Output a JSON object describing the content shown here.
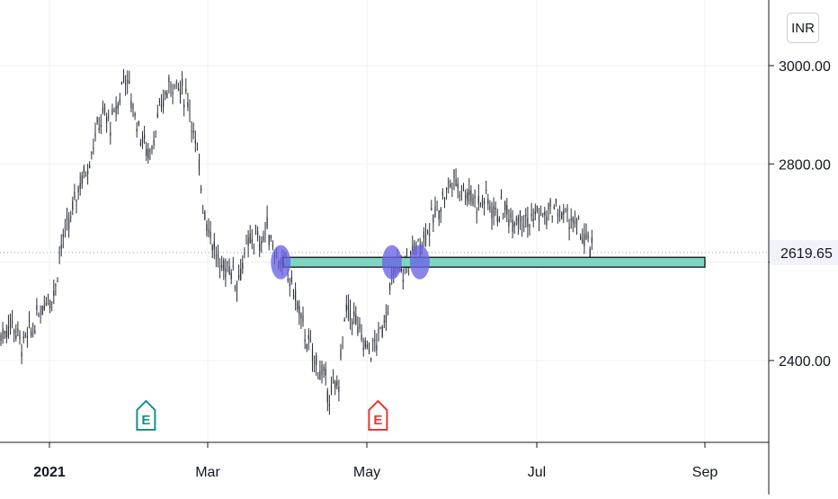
{
  "chart_data": {
    "type": "candlestick",
    "currency": "INR",
    "x_ticks": [
      "2021",
      "Mar",
      "May",
      "Jul",
      "Sep"
    ],
    "y_ticks": [
      2400,
      2600,
      2800,
      3000
    ],
    "y_tick_labels": [
      "2400.00",
      "",
      "2800.00",
      "3000.00"
    ],
    "ylim": [
      2200,
      3100
    ],
    "last_price": 2619.65,
    "last_price_label": "2619.65",
    "support_zone": {
      "low": 2590,
      "high": 2610,
      "start": "2021-03-30",
      "end": "2021-09-01"
    },
    "touch_points": [
      {
        "date": "2021-03-29",
        "price": 2600
      },
      {
        "date": "2021-05-10",
        "price": 2600
      },
      {
        "date": "2021-05-20",
        "price": 2600
      }
    ],
    "events": [
      {
        "label": "E",
        "date": "2021-02-06",
        "kind": "earnings",
        "color": "#1b8f8f"
      },
      {
        "label": "E",
        "date": "2021-05-05",
        "kind": "earnings",
        "color": "#e53935"
      }
    ],
    "series": [
      {
        "values": [
          [
            "2020-12-10",
            2470
          ],
          [
            "2020-12-14",
            2450
          ],
          [
            "2020-12-18",
            2480
          ],
          [
            "2020-12-22",
            2430
          ],
          [
            "2020-12-26",
            2470
          ],
          [
            "2020-12-30",
            2520
          ],
          [
            "2021-01-03",
            2540
          ],
          [
            "2021-01-05",
            2630
          ],
          [
            "2021-01-07",
            2660
          ],
          [
            "2021-01-09",
            2690
          ],
          [
            "2021-01-12",
            2760
          ],
          [
            "2021-01-15",
            2790
          ],
          [
            "2021-01-18",
            2860
          ],
          [
            "2021-01-21",
            2900
          ],
          [
            "2021-01-24",
            2880
          ],
          [
            "2021-01-27",
            2930
          ],
          [
            "2021-01-29",
            2990
          ],
          [
            "2021-02-01",
            2920
          ],
          [
            "2021-02-04",
            2860
          ],
          [
            "2021-02-07",
            2820
          ],
          [
            "2021-02-10",
            2880
          ],
          [
            "2021-02-13",
            2940
          ],
          [
            "2021-02-16",
            2970
          ],
          [
            "2021-02-19",
            2950
          ],
          [
            "2021-02-22",
            2930
          ],
          [
            "2021-02-24",
            2850
          ],
          [
            "2021-02-26",
            2780
          ],
          [
            "2021-02-28",
            2700
          ],
          [
            "2021-03-03",
            2640
          ],
          [
            "2021-03-06",
            2580
          ],
          [
            "2021-03-09",
            2600
          ],
          [
            "2021-03-12",
            2560
          ],
          [
            "2021-03-15",
            2610
          ],
          [
            "2021-03-18",
            2650
          ],
          [
            "2021-03-21",
            2640
          ],
          [
            "2021-03-24",
            2670
          ],
          [
            "2021-03-27",
            2620
          ],
          [
            "2021-03-30",
            2590
          ],
          [
            "2021-04-02",
            2560
          ],
          [
            "2021-04-05",
            2500
          ],
          [
            "2021-04-08",
            2440
          ],
          [
            "2021-04-11",
            2400
          ],
          [
            "2021-04-14",
            2370
          ],
          [
            "2021-04-17",
            2330
          ],
          [
            "2021-04-20",
            2350
          ],
          [
            "2021-04-23",
            2500
          ],
          [
            "2021-04-26",
            2490
          ],
          [
            "2021-04-29",
            2440
          ],
          [
            "2021-05-02",
            2420
          ],
          [
            "2021-05-05",
            2440
          ],
          [
            "2021-05-08",
            2500
          ],
          [
            "2021-05-11",
            2590
          ],
          [
            "2021-05-14",
            2580
          ],
          [
            "2021-05-17",
            2620
          ],
          [
            "2021-05-20",
            2640
          ],
          [
            "2021-05-23",
            2670
          ],
          [
            "2021-05-26",
            2700
          ],
          [
            "2021-05-29",
            2740
          ],
          [
            "2021-06-01",
            2770
          ],
          [
            "2021-06-04",
            2750
          ],
          [
            "2021-06-07",
            2740
          ],
          [
            "2021-06-10",
            2720
          ],
          [
            "2021-06-13",
            2730
          ],
          [
            "2021-06-16",
            2700
          ],
          [
            "2021-06-19",
            2710
          ],
          [
            "2021-06-22",
            2690
          ],
          [
            "2021-06-25",
            2700
          ],
          [
            "2021-06-28",
            2680
          ],
          [
            "2021-07-01",
            2700
          ],
          [
            "2021-07-04",
            2690
          ],
          [
            "2021-07-07",
            2710
          ],
          [
            "2021-07-10",
            2700
          ],
          [
            "2021-07-13",
            2690
          ],
          [
            "2021-07-16",
            2670
          ],
          [
            "2021-07-19",
            2640
          ],
          [
            "2021-07-22",
            2619.65
          ]
        ]
      }
    ]
  },
  "colors": {
    "candle": "#2a2e39",
    "grid": "#eef0f3",
    "zone_fill": "#7fd4c4",
    "zone_border": "#000000",
    "circle": "#6a63e6",
    "axis": "#131722",
    "price_box": "#f0f3fa"
  }
}
